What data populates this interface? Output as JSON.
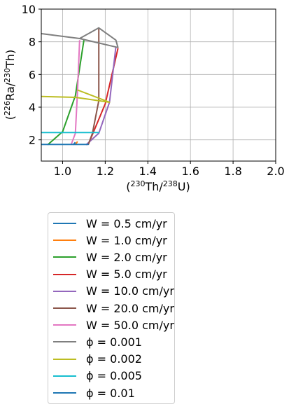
{
  "chart_data": {
    "type": "line",
    "xlabel_base": "(",
    "xlabel_sup1": "230",
    "xlabel_mid": "Th/",
    "xlabel_sup2": "238",
    "xlabel_end": "U)",
    "ylabel_base": "(",
    "ylabel_sup1": "226",
    "ylabel_mid": "Ra/",
    "ylabel_sup2": "230",
    "ylabel_end": "Th)",
    "xlim": [
      0.9,
      2.0
    ],
    "ylim": [
      0.7,
      10.0
    ],
    "xticks": [
      "1.0",
      "1.2",
      "1.4",
      "1.6",
      "1.8",
      "2.0"
    ],
    "xtick_values": [
      1.0,
      1.2,
      1.4,
      1.6,
      1.8,
      2.0
    ],
    "yticks": [
      "2",
      "4",
      "6",
      "8",
      "10"
    ],
    "ytick_values": [
      2,
      4,
      6,
      8,
      10
    ],
    "grid": true,
    "legend_position": "below",
    "series": [
      {
        "name": "W = 0.5 cm/yr",
        "color": "#1f77b4",
        "points": [
          [
            1.05,
            1.7
          ],
          [
            1.06,
            1.85
          ]
        ]
      },
      {
        "name": "W = 1.0 cm/yr",
        "color": "#ff7f0e",
        "points": [
          [
            1.06,
            1.7
          ],
          [
            1.07,
            1.9
          ]
        ]
      },
      {
        "name": "W = 2.0 cm/yr",
        "color": "#2ca02c",
        "points": [
          [
            0.93,
            1.7
          ],
          [
            1.0,
            2.5
          ],
          [
            1.06,
            4.7
          ],
          [
            1.1,
            8.1
          ]
        ]
      },
      {
        "name": "W = 5.0 cm/yr",
        "color": "#d62728",
        "points": [
          [
            1.12,
            1.7
          ],
          [
            1.2,
            4.2
          ],
          [
            1.26,
            7.6
          ]
        ]
      },
      {
        "name": "W = 10.0 cm/yr",
        "color": "#9467bd",
        "points": [
          [
            1.11,
            1.7
          ],
          [
            1.17,
            2.4
          ],
          [
            1.22,
            4.3
          ],
          [
            1.25,
            7.7
          ]
        ]
      },
      {
        "name": "W = 20.0 cm/yr",
        "color": "#8c564b",
        "points": [
          [
            1.12,
            1.7
          ],
          [
            1.14,
            2.4
          ],
          [
            1.17,
            4.4
          ],
          [
            1.17,
            8.8
          ]
        ]
      },
      {
        "name": "W = 50.0 cm/yr",
        "color": "#e377c2",
        "points": [
          [
            1.04,
            1.7
          ],
          [
            1.06,
            2.4
          ],
          [
            1.07,
            5.0
          ],
          [
            1.08,
            8.1
          ]
        ]
      },
      {
        "name": "ϕ = 0.001",
        "color": "#7f7f7f",
        "points": [
          [
            0.9,
            8.5
          ],
          [
            1.08,
            8.2
          ],
          [
            1.26,
            7.65
          ],
          [
            1.25,
            8.1
          ],
          [
            1.17,
            8.85
          ],
          [
            1.08,
            8.2
          ]
        ]
      },
      {
        "name": "ϕ = 0.002",
        "color": "#bcbd22",
        "points": [
          [
            0.9,
            4.65
          ],
          [
            1.06,
            4.6
          ],
          [
            1.22,
            4.3
          ],
          [
            1.07,
            5.05
          ]
        ]
      },
      {
        "name": "ϕ = 0.005",
        "color": "#17becf",
        "points": [
          [
            0.9,
            2.45
          ],
          [
            1.17,
            2.45
          ],
          [
            1.06,
            2.45
          ]
        ]
      },
      {
        "name": "ϕ = 0.01",
        "color": "#1f77b4",
        "points": [
          [
            0.9,
            1.72
          ],
          [
            1.12,
            1.72
          ],
          [
            1.05,
            1.72
          ]
        ]
      }
    ]
  },
  "legend": {
    "items": [
      {
        "label": "W = 0.5 cm/yr",
        "color": "#1f77b4"
      },
      {
        "label": "W = 1.0 cm/yr",
        "color": "#ff7f0e"
      },
      {
        "label": "W = 2.0 cm/yr",
        "color": "#2ca02c"
      },
      {
        "label": "W = 5.0 cm/yr",
        "color": "#d62728"
      },
      {
        "label": "W = 10.0 cm/yr",
        "color": "#9467bd"
      },
      {
        "label": "W = 20.0 cm/yr",
        "color": "#8c564b"
      },
      {
        "label": "W = 50.0 cm/yr",
        "color": "#e377c2"
      },
      {
        "label": "ϕ = 0.001",
        "color": "#7f7f7f"
      },
      {
        "label": "ϕ = 0.002",
        "color": "#bcbd22"
      },
      {
        "label": "ϕ = 0.005",
        "color": "#17becf"
      },
      {
        "label": "ϕ = 0.01",
        "color": "#1f77b4"
      }
    ]
  }
}
